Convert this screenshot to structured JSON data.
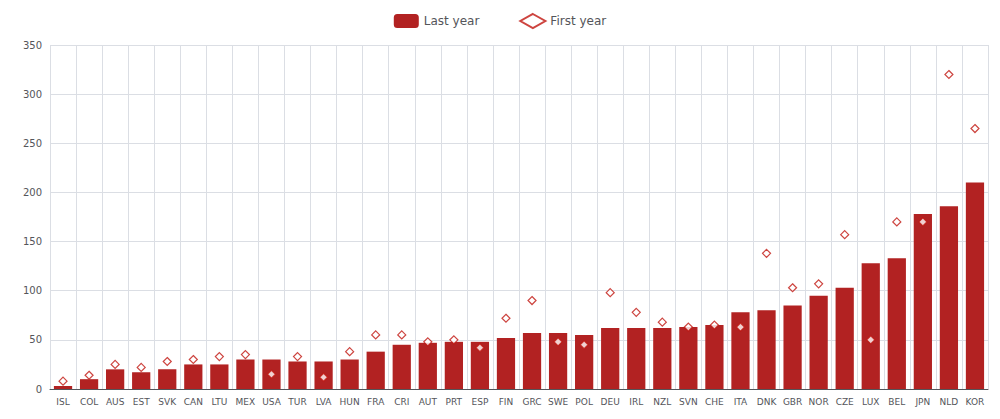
{
  "chart_data": {
    "type": "bar",
    "categories": [
      "ISL",
      "COL",
      "AUS",
      "EST",
      "SVK",
      "CAN",
      "LTU",
      "MEX",
      "USA",
      "TUR",
      "LVA",
      "HUN",
      "FRA",
      "CRI",
      "AUT",
      "PRT",
      "ESP",
      "FIN",
      "GRC",
      "SWE",
      "POL",
      "DEU",
      "IRL",
      "NZL",
      "SVN",
      "CHE",
      "ITA",
      "DNK",
      "GBR",
      "NOR",
      "CZE",
      "LUX",
      "BEL",
      "JPN",
      "NLD",
      "KOR"
    ],
    "series": [
      {
        "name": "Last year",
        "type": "bar",
        "color": "#B22222",
        "values": [
          3,
          10,
          20,
          17,
          20,
          25,
          25,
          30,
          30,
          28,
          28,
          30,
          38,
          45,
          47,
          48,
          48,
          52,
          57,
          57,
          55,
          62,
          62,
          62,
          63,
          65,
          78,
          80,
          85,
          95,
          103,
          128,
          133,
          178,
          186,
          210
        ]
      },
      {
        "name": "First year",
        "type": "scatter",
        "marker": "diamond",
        "color": "#C0150F",
        "values": [
          8,
          14,
          25,
          22,
          28,
          30,
          33,
          35,
          15,
          33,
          12,
          38,
          55,
          55,
          48,
          50,
          42,
          72,
          90,
          48,
          45,
          98,
          78,
          68,
          63,
          65,
          63,
          138,
          103,
          107,
          157,
          50,
          170,
          170,
          320,
          265
        ]
      }
    ],
    "ylim": [
      0,
      350
    ],
    "yticks": [
      0,
      50,
      100,
      150,
      200,
      250,
      300,
      350
    ],
    "grid": true,
    "legend": "top"
  }
}
